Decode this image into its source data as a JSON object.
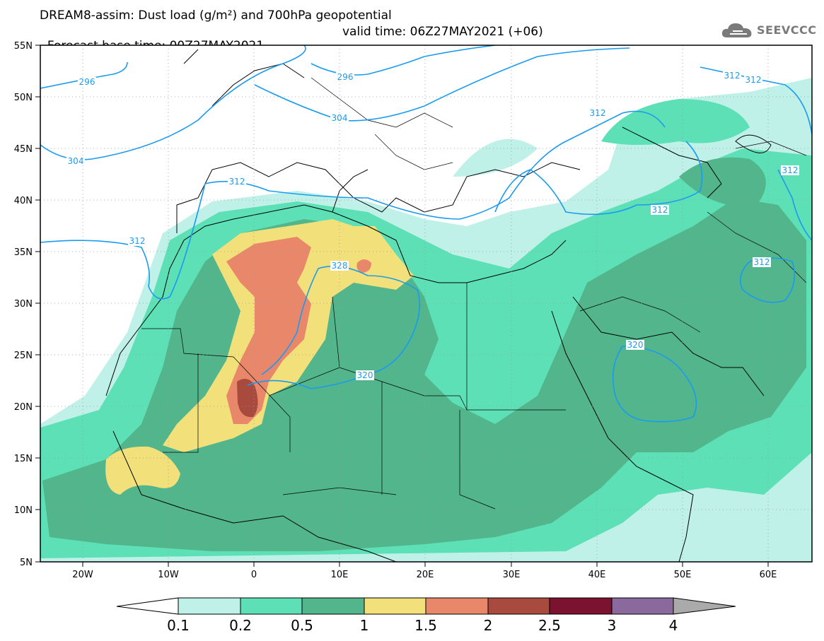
{
  "header": {
    "title": "DREAM8-assim: Dust load (g/m²) and 700hPa geopotential",
    "base_time": "Forecast base time: 00Z27MAY2021",
    "valid_time": "valid time: 06Z27MAY2021 (+06)"
  },
  "logo": {
    "icon": "cloud-icon",
    "text": "SEEVCCC",
    "color": "#7a7a7a"
  },
  "map": {
    "lat_labels": [
      "55N",
      "50N",
      "45N",
      "40N",
      "35N",
      "30N",
      "25N",
      "20N",
      "15N",
      "10N",
      "5N"
    ],
    "lon_labels": [
      "20W",
      "10W",
      "0",
      "10E",
      "20E",
      "30E",
      "40E",
      "50E",
      "60E"
    ],
    "contour_labels": [
      "296",
      "296",
      "304",
      "304",
      "312",
      "312",
      "312",
      "312",
      "312",
      "312",
      "312",
      "312",
      "320",
      "320",
      "328"
    ],
    "contour_color": "#1a9bf0"
  },
  "colorbar": {
    "ticks": [
      "0.1",
      "0.2",
      "0.5",
      "1",
      "1.5",
      "2",
      "2.5",
      "3",
      "4"
    ],
    "colors": [
      "#bff1e8",
      "#5de0b6",
      "#52b58c",
      "#f2e17a",
      "#e8876a",
      "#a84a3e",
      "#7a1230",
      "#8a6a9c"
    ],
    "under_color": "#ffffff",
    "over_color": "#aaaaaa"
  }
}
